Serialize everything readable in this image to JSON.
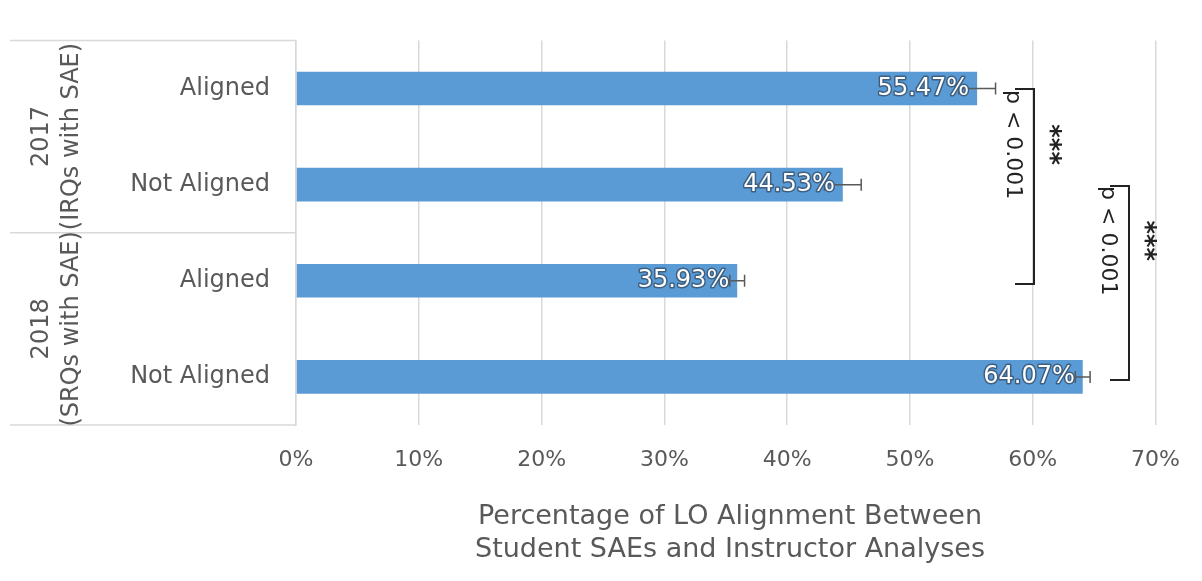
{
  "chart_data": {
    "type": "bar",
    "orientation": "horizontal",
    "categories": [
      "Aligned",
      "Not Aligned",
      "Aligned",
      "Not Aligned"
    ],
    "values": [
      55.47,
      44.53,
      35.93,
      64.07
    ],
    "errors": [
      1.5,
      1.5,
      0.6,
      0.6
    ],
    "value_labels": [
      "55.47%",
      "44.53%",
      "35.93%",
      "64.07%"
    ],
    "color": "#5b9bd5",
    "xlabel": "Percentage of LO Alignment Between Student SAEs and Instructor Analyses",
    "xlim": [
      0,
      70
    ],
    "xticks": [
      {
        "value": 0,
        "label": "0%"
      },
      {
        "value": 10,
        "label": "10%"
      },
      {
        "value": 20,
        "label": "20%"
      },
      {
        "value": 30,
        "label": "30%"
      },
      {
        "value": 40,
        "label": "40%"
      },
      {
        "value": 50,
        "label": "50%"
      },
      {
        "value": 60,
        "label": "60%"
      },
      {
        "value": 70,
        "label": "70%"
      }
    ],
    "annotations": [
      "2017\n(IRQs with SAE)",
      "2018\n(SRQs with SAE)",
      "p < 0.001",
      "***",
      "p < 0.001",
      "***"
    ],
    "grid": "x",
    "legend": false
  }
}
